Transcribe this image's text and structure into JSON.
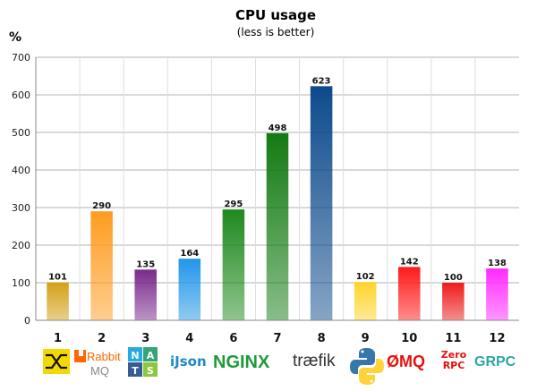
{
  "chart_data": {
    "type": "bar",
    "title": "CPU usage",
    "subtitle": "(less is better)",
    "ylabel": "%",
    "xlabel": "",
    "ylim": [
      0,
      700
    ],
    "yticks": [
      0,
      100,
      200,
      300,
      400,
      500,
      600,
      700
    ],
    "grid": true,
    "categories": [
      "1",
      "2",
      "3",
      "4",
      "6",
      "7",
      "8",
      "9",
      "10",
      "11",
      "12"
    ],
    "values": [
      101,
      290,
      135,
      164,
      295,
      498,
      623,
      102,
      142,
      100,
      138
    ],
    "colors": [
      "#d4a017",
      "#ff9c1f",
      "#7a2a8c",
      "#2196e8",
      "#1e8a1e",
      "#137a13",
      "#0d4a8c",
      "#ffd42a",
      "#ff1a1a",
      "#ee1c1c",
      "#ff2cff"
    ]
  },
  "logos": [
    {
      "name": "zeromq-x-logo",
      "text": ""
    },
    {
      "name": "rabbitmq-logo",
      "text": "RabbitMQ"
    },
    {
      "name": "nats-logo",
      "text": "NATS"
    },
    {
      "name": "ijson-logo",
      "text": "iJson"
    },
    {
      "name": "nginx-logo",
      "text": "NGINX"
    },
    {
      "name": "traefik-logo",
      "text": "træfik"
    },
    {
      "name": "python-logo",
      "text": ""
    },
    {
      "name": "zmq-logo",
      "text": "ØMQ"
    },
    {
      "name": "zerorpc-logo",
      "text": "Zero RPC"
    },
    {
      "name": "grpc-logo",
      "text": "GRPC"
    }
  ]
}
